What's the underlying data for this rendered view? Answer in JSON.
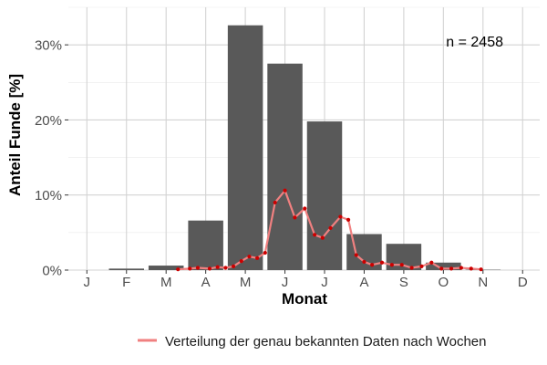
{
  "chart_data": {
    "type": "bar",
    "xlabel": "Monat",
    "ylabel": "Anteil Funde [%]",
    "annotation": "n = 2458",
    "categories": [
      "J",
      "F",
      "M",
      "A",
      "M",
      "J",
      "J",
      "A",
      "S",
      "O",
      "N",
      "D"
    ],
    "ylim": [
      0,
      35
    ],
    "yticks": [
      0,
      10,
      20,
      30
    ],
    "ytick_labels": [
      "0%",
      "10%",
      "20%",
      "30%"
    ],
    "grid": true,
    "legend_position": "bottom-right",
    "colors": {
      "bars": "#595959",
      "line": "#f08080",
      "points": "#cc0000",
      "grid": "#d3d3d3"
    },
    "series": [
      {
        "type": "bar",
        "values": [
          0,
          0.2,
          0.6,
          6.6,
          32.6,
          27.5,
          19.8,
          4.8,
          3.5,
          1.0,
          0.05,
          0
        ]
      },
      {
        "type": "line",
        "name": "Verteilung der genau bekannten Daten nach Wochen",
        "x": [
          2.3,
          2.6,
          2.8,
          3.1,
          3.3,
          3.5,
          3.7,
          3.9,
          4.1,
          4.3,
          4.5,
          4.75,
          5.0,
          5.25,
          5.5,
          5.75,
          5.95,
          6.15,
          6.4,
          6.6,
          6.8,
          7.0,
          7.2,
          7.45,
          7.7,
          7.95,
          8.2,
          8.45,
          8.7,
          8.95,
          9.2,
          9.45,
          9.7,
          9.95
        ],
        "values": [
          0.1,
          0.2,
          0.3,
          0.2,
          0.4,
          0.3,
          0.5,
          1.2,
          1.8,
          1.6,
          2.3,
          9.0,
          10.6,
          7.0,
          8.2,
          4.7,
          4.3,
          5.6,
          7.1,
          6.7,
          2.0,
          1.1,
          0.7,
          1.0,
          0.7,
          0.7,
          0.3,
          0.5,
          1.0,
          0.2,
          0.2,
          0.3,
          0.2,
          0.1
        ]
      }
    ]
  }
}
